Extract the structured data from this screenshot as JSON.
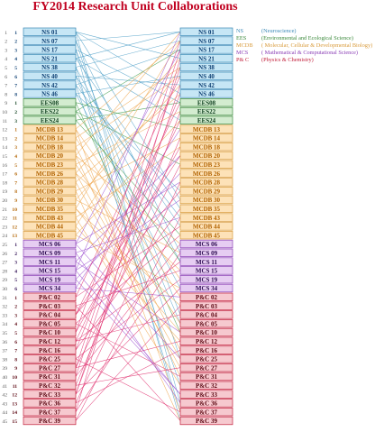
{
  "title": "FY2014  Research Unit Collaborations",
  "colors": {
    "NS": {
      "fill": "#c6e6f5",
      "stroke": "#3a89b6",
      "text": "#0d3f73",
      "line": "#4fa0c8"
    },
    "EES": {
      "fill": "#d3ecd0",
      "stroke": "#3c8a3c",
      "text": "#0d3f1d",
      "line": "#3e9c4a"
    },
    "MCDB": {
      "fill": "#fde2b8",
      "stroke": "#d89a3a",
      "text": "#b26300",
      "line": "#efa54a"
    },
    "MCS": {
      "fill": "#e6cdf2",
      "stroke": "#8b3fb6",
      "text": "#2e0d52",
      "line": "#9b4fd0"
    },
    "PC": {
      "fill": "#f6c9cf",
      "stroke": "#c2203c",
      "text": "#5a0510",
      "line": "#e0306e"
    }
  },
  "legend": [
    {
      "key": "NS",
      "label": "(Neuroscience)",
      "group": "NS"
    },
    {
      "key": "EES",
      "label": "(Environmental and Ecological Science)",
      "group": "EES"
    },
    {
      "key": "MCDB",
      "label": "( Molecular, Cellular & Developmental Biology)",
      "group": "MCDB"
    },
    {
      "key": "MCS",
      "label": "( Mathematical & Computational Science)",
      "group": "MCS"
    },
    {
      "key": "P& C",
      "label": "(Physics & Chemistry)",
      "group": "PC"
    }
  ],
  "units": [
    {
      "label": "NS 01",
      "group": "NS",
      "n": "1",
      "g": "1"
    },
    {
      "label": "NS 07",
      "group": "NS",
      "n": "2",
      "g": "2"
    },
    {
      "label": "NS 17",
      "group": "NS",
      "n": "3",
      "g": "3"
    },
    {
      "label": "NS 21",
      "group": "NS",
      "n": "4",
      "g": "4"
    },
    {
      "label": "NS 38",
      "group": "NS",
      "n": "5",
      "g": "5"
    },
    {
      "label": "NS 40",
      "group": "NS",
      "n": "6",
      "g": "6"
    },
    {
      "label": "NS 42",
      "group": "NS",
      "n": "7",
      "g": "7"
    },
    {
      "label": "NS 46",
      "group": "NS",
      "n": "8",
      "g": "8"
    },
    {
      "label": "EES08",
      "group": "EES",
      "n": "9",
      "g": "1"
    },
    {
      "label": "EES22",
      "group": "EES",
      "n": "10",
      "g": "2"
    },
    {
      "label": "EES24",
      "group": "EES",
      "n": "11",
      "g": "3"
    },
    {
      "label": "MCDB 13",
      "group": "MCDB",
      "n": "12",
      "g": "1"
    },
    {
      "label": "MCDB 14",
      "group": "MCDB",
      "n": "13",
      "g": "2"
    },
    {
      "label": "MCDB 18",
      "group": "MCDB",
      "n": "14",
      "g": "3"
    },
    {
      "label": "MCDB 20",
      "group": "MCDB",
      "n": "15",
      "g": "4"
    },
    {
      "label": "MCDB 23",
      "group": "MCDB",
      "n": "16",
      "g": "5"
    },
    {
      "label": "MCDB 26",
      "group": "MCDB",
      "n": "17",
      "g": "6"
    },
    {
      "label": "MCDB 28",
      "group": "MCDB",
      "n": "18",
      "g": "7"
    },
    {
      "label": "MCDB 29",
      "group": "MCDB",
      "n": "19",
      "g": "8"
    },
    {
      "label": "MCDB 30",
      "group": "MCDB",
      "n": "20",
      "g": "9"
    },
    {
      "label": "MCDB 35",
      "group": "MCDB",
      "n": "21",
      "g": "10"
    },
    {
      "label": "MCDB 43",
      "group": "MCDB",
      "n": "22",
      "g": "11"
    },
    {
      "label": "MCDB 44",
      "group": "MCDB",
      "n": "23",
      "g": "12"
    },
    {
      "label": "MCDB 45",
      "group": "MCDB",
      "n": "24",
      "g": "13"
    },
    {
      "label": "MCS 06",
      "group": "MCS",
      "n": "25",
      "g": "1"
    },
    {
      "label": "MCS 09",
      "group": "MCS",
      "n": "26",
      "g": "2"
    },
    {
      "label": "MCS 11",
      "group": "MCS",
      "n": "27",
      "g": "3"
    },
    {
      "label": "MCS 15",
      "group": "MCS",
      "n": "28",
      "g": "4"
    },
    {
      "label": "MCS 19",
      "group": "MCS",
      "n": "29",
      "g": "5"
    },
    {
      "label": "MCS 34",
      "group": "MCS",
      "n": "30",
      "g": "6"
    },
    {
      "label": "P&C 02",
      "group": "PC",
      "n": "31",
      "g": "1"
    },
    {
      "label": "P&C 03",
      "group": "PC",
      "n": "32",
      "g": "2"
    },
    {
      "label": "P&C 04",
      "group": "PC",
      "n": "33",
      "g": "3"
    },
    {
      "label": "P&C 05",
      "group": "PC",
      "n": "34",
      "g": "4"
    },
    {
      "label": "P&C 10",
      "group": "PC",
      "n": "35",
      "g": "5"
    },
    {
      "label": "P&C 12",
      "group": "PC",
      "n": "36",
      "g": "6"
    },
    {
      "label": "P&C 16",
      "group": "PC",
      "n": "37",
      "g": "7"
    },
    {
      "label": "P&C 25",
      "group": "PC",
      "n": "38",
      "g": "8"
    },
    {
      "label": "P&C 27",
      "group": "PC",
      "n": "39",
      "g": "9"
    },
    {
      "label": "P&C 31",
      "group": "PC",
      "n": "40",
      "g": "10"
    },
    {
      "label": "P&C 32",
      "group": "PC",
      "n": "41",
      "g": "11"
    },
    {
      "label": "P&C 33",
      "group": "PC",
      "n": "42",
      "g": "12"
    },
    {
      "label": "P&C 36",
      "group": "PC",
      "n": "43",
      "g": "13"
    },
    {
      "label": "P&C 37",
      "group": "PC",
      "n": "44",
      "g": "14"
    },
    {
      "label": "P&C 39",
      "group": "PC",
      "n": "45",
      "g": "15"
    }
  ],
  "links": [
    [
      1,
      4
    ],
    [
      1,
      8
    ],
    [
      1,
      20
    ],
    [
      1,
      43
    ],
    [
      2,
      1
    ],
    [
      2,
      26
    ],
    [
      2,
      38
    ],
    [
      3,
      9
    ],
    [
      3,
      33
    ],
    [
      3,
      45
    ],
    [
      4,
      1
    ],
    [
      4,
      11
    ],
    [
      4,
      21
    ],
    [
      5,
      2
    ],
    [
      5,
      27
    ],
    [
      5,
      44
    ],
    [
      6,
      7
    ],
    [
      6,
      34
    ],
    [
      7,
      3
    ],
    [
      7,
      22
    ],
    [
      7,
      41
    ],
    [
      8,
      6
    ],
    [
      8,
      19
    ],
    [
      8,
      30
    ],
    [
      9,
      12
    ],
    [
      9,
      35
    ],
    [
      10,
      16
    ],
    [
      10,
      3
    ],
    [
      11,
      9
    ],
    [
      11,
      24
    ],
    [
      12,
      2
    ],
    [
      12,
      29
    ],
    [
      12,
      44
    ],
    [
      13,
      5
    ],
    [
      13,
      31
    ],
    [
      14,
      6
    ],
    [
      14,
      37
    ],
    [
      15,
      1
    ],
    [
      15,
      25
    ],
    [
      15,
      40
    ],
    [
      16,
      10
    ],
    [
      16,
      34
    ],
    [
      17,
      4
    ],
    [
      17,
      28
    ],
    [
      18,
      8
    ],
    [
      18,
      39
    ],
    [
      19,
      13
    ],
    [
      19,
      45
    ],
    [
      20,
      7
    ],
    [
      20,
      26
    ],
    [
      21,
      2
    ],
    [
      21,
      32
    ],
    [
      22,
      14
    ],
    [
      22,
      41
    ],
    [
      23,
      5
    ],
    [
      23,
      36
    ],
    [
      24,
      11
    ],
    [
      24,
      30
    ],
    [
      25,
      18
    ],
    [
      25,
      38
    ],
    [
      25,
      3
    ],
    [
      26,
      22
    ],
    [
      26,
      43
    ],
    [
      27,
      15
    ],
    [
      27,
      35
    ],
    [
      28,
      20
    ],
    [
      28,
      1
    ],
    [
      29,
      17
    ],
    [
      29,
      42
    ],
    [
      30,
      12
    ],
    [
      30,
      31
    ],
    [
      31,
      23
    ],
    [
      31,
      6
    ],
    [
      32,
      28
    ],
    [
      32,
      45
    ],
    [
      33,
      19
    ],
    [
      33,
      9
    ],
    [
      34,
      24
    ],
    [
      34,
      40
    ],
    [
      35,
      14
    ],
    [
      35,
      2
    ],
    [
      36,
      27
    ],
    [
      36,
      33
    ],
    [
      37,
      21
    ],
    [
      37,
      8
    ],
    [
      38,
      29
    ],
    [
      38,
      44
    ],
    [
      39,
      16
    ],
    [
      39,
      36
    ],
    [
      40,
      25
    ],
    [
      40,
      5
    ],
    [
      41,
      13
    ],
    [
      41,
      39
    ],
    [
      42,
      30
    ],
    [
      42,
      10
    ],
    [
      43,
      18
    ],
    [
      43,
      37
    ],
    [
      44,
      26
    ],
    [
      44,
      4
    ],
    [
      45,
      22
    ],
    [
      45,
      32
    ],
    [
      42,
      7
    ],
    [
      39,
      3
    ],
    [
      36,
      11
    ],
    [
      33,
      15
    ],
    [
      28,
      42
    ],
    [
      21,
      35
    ],
    [
      17,
      38
    ],
    [
      10,
      27
    ],
    [
      6,
      23
    ]
  ]
}
